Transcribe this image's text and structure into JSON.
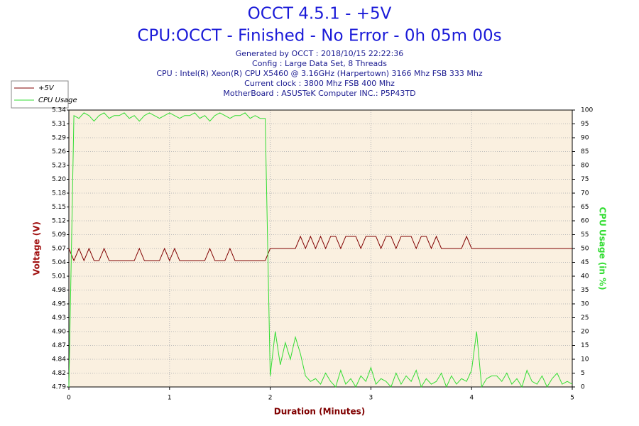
{
  "chart_data": {
    "type": "line",
    "title": "OCCT 4.5.1 - +5V",
    "subtitle": "CPU:OCCT - Finished - No Error - 0h 05m 00s",
    "info": [
      "Generated by OCCT : 2018/10/15 22:22:36",
      "Config : Large Data Set, 8 Threads",
      "CPU : Intel(R) Xeon(R) CPU X5460 @ 3.16GHz (Harpertown) 3166 Mhz FSB 333 Mhz",
      "Current clock : 3800 Mhz FSB 400 Mhz",
      "MotherBoard : ASUSTeK Computer INC.: P5P43TD"
    ],
    "xlabel": "Duration (Minutes)",
    "ylabel": "Voltage (V)",
    "y2label": "CPU Usage (in %)",
    "xlim": [
      0,
      5
    ],
    "xticks": [
      0,
      1,
      2,
      3,
      4,
      5
    ],
    "ylim": [
      4.79,
      5.34
    ],
    "yticks": [
      {
        "value": 4.79,
        "label": "4.79"
      },
      {
        "value": 4.8175,
        "label": "4.82"
      },
      {
        "value": 4.845,
        "label": "4.84"
      },
      {
        "value": 4.8725,
        "label": "4.87"
      },
      {
        "value": 4.9,
        "label": "4.90"
      },
      {
        "value": 4.9275,
        "label": "4.93"
      },
      {
        "value": 4.955,
        "label": "4.95"
      },
      {
        "value": 4.9825,
        "label": "4.98"
      },
      {
        "value": 5.01,
        "label": "5.01"
      },
      {
        "value": 5.0375,
        "label": "5.04"
      },
      {
        "value": 5.065,
        "label": "5.07"
      },
      {
        "value": 5.0925,
        "label": "5.09"
      },
      {
        "value": 5.12,
        "label": "5.12"
      },
      {
        "value": 5.1475,
        "label": "5.15"
      },
      {
        "value": 5.175,
        "label": "5.18"
      },
      {
        "value": 5.2025,
        "label": "5.20"
      },
      {
        "value": 5.23,
        "label": "5.23"
      },
      {
        "value": 5.2575,
        "label": "5.26"
      },
      {
        "value": 5.285,
        "label": "5.29"
      },
      {
        "value": 5.3125,
        "label": "5.31"
      },
      {
        "value": 5.34,
        "label": "5.34"
      }
    ],
    "y2lim": [
      0,
      100
    ],
    "y2ticks": [
      0,
      5,
      10,
      15,
      20,
      25,
      30,
      35,
      40,
      45,
      50,
      55,
      60,
      65,
      70,
      75,
      80,
      85,
      90,
      95,
      100
    ],
    "grid": true,
    "legend": "top-left",
    "x": [
      0,
      0.05,
      0.1,
      0.15,
      0.2,
      0.25,
      0.3,
      0.35,
      0.4,
      0.45,
      0.5,
      0.55,
      0.6,
      0.65,
      0.7,
      0.75,
      0.8,
      0.85,
      0.9,
      0.95,
      1,
      1.05,
      1.1,
      1.15,
      1.2,
      1.25,
      1.3,
      1.35,
      1.4,
      1.45,
      1.5,
      1.55,
      1.6,
      1.65,
      1.7,
      1.75,
      1.8,
      1.85,
      1.9,
      1.95,
      2,
      2.05,
      2.1,
      2.15,
      2.2,
      2.25,
      2.3,
      2.35,
      2.4,
      2.45,
      2.5,
      2.55,
      2.6,
      2.65,
      2.7,
      2.75,
      2.8,
      2.85,
      2.9,
      2.95,
      3,
      3.05,
      3.1,
      3.15,
      3.2,
      3.25,
      3.3,
      3.35,
      3.4,
      3.45,
      3.5,
      3.55,
      3.6,
      3.65,
      3.7,
      3.75,
      3.8,
      3.85,
      3.9,
      3.95,
      4,
      4.05,
      4.1,
      4.15,
      4.2,
      4.25,
      4.3,
      4.35,
      4.4,
      4.45,
      4.5,
      4.55,
      4.6,
      4.65,
      4.7,
      4.75,
      4.8,
      4.85,
      4.9,
      4.95,
      5
    ],
    "series": [
      {
        "name": "+5V",
        "color": "#800000",
        "values": [
          5.065,
          5.041,
          5.065,
          5.041,
          5.065,
          5.041,
          5.041,
          5.065,
          5.041,
          5.041,
          5.041,
          5.041,
          5.041,
          5.041,
          5.065,
          5.041,
          5.041,
          5.041,
          5.041,
          5.065,
          5.041,
          5.065,
          5.041,
          5.041,
          5.041,
          5.041,
          5.041,
          5.041,
          5.065,
          5.041,
          5.041,
          5.041,
          5.065,
          5.041,
          5.041,
          5.041,
          5.041,
          5.041,
          5.041,
          5.041,
          5.065,
          5.065,
          5.065,
          5.065,
          5.065,
          5.065,
          5.089,
          5.065,
          5.089,
          5.065,
          5.089,
          5.065,
          5.089,
          5.089,
          5.065,
          5.089,
          5.089,
          5.089,
          5.065,
          5.089,
          5.089,
          5.089,
          5.065,
          5.089,
          5.089,
          5.065,
          5.089,
          5.089,
          5.089,
          5.065,
          5.089,
          5.089,
          5.065,
          5.089,
          5.065,
          5.065,
          5.065,
          5.065,
          5.065,
          5.089,
          5.065,
          5.065,
          5.065,
          5.065,
          5.065,
          5.065,
          5.065,
          5.065,
          5.065,
          5.065,
          5.065,
          5.065,
          5.065,
          5.065,
          5.065,
          5.065,
          5.065,
          5.065,
          5.065,
          5.065,
          5.065
        ]
      },
      {
        "name": "CPU Usage",
        "color": "#33dd33",
        "axis": "y2",
        "values": [
          0,
          98,
          97,
          99,
          98,
          96,
          98,
          99,
          97,
          98,
          98,
          99,
          97,
          98,
          96,
          98,
          99,
          98,
          97,
          98,
          99,
          98,
          97,
          98,
          98,
          99,
          97,
          98,
          96,
          98,
          99,
          98,
          97,
          98,
          98,
          99,
          97,
          98,
          97,
          97,
          4,
          20,
          8,
          16,
          10,
          18,
          12,
          4,
          2,
          3,
          1,
          5,
          2,
          0,
          6,
          1,
          3,
          0,
          4,
          2,
          7,
          1,
          3,
          2,
          0,
          5,
          1,
          4,
          2,
          6,
          0,
          3,
          1,
          2,
          5,
          0,
          4,
          1,
          3,
          2,
          6,
          20,
          0,
          3,
          4,
          4,
          2,
          5,
          1,
          3,
          0,
          6,
          2,
          1,
          4,
          0,
          3,
          5,
          1,
          2,
          1
        ]
      }
    ]
  }
}
